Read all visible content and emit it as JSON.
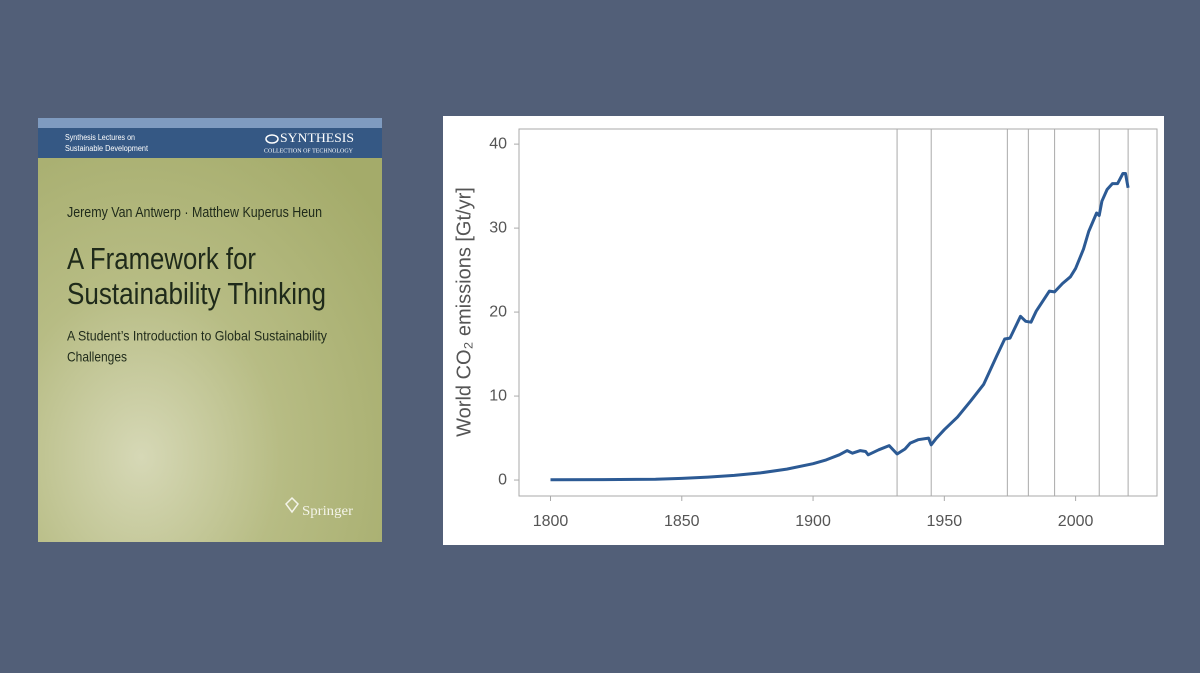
{
  "book_cover": {
    "series_label": [
      "Synthesis Lectures on",
      "Sustainable Development"
    ],
    "publisher_logo": "SYNTHESIS",
    "publisher_tagline": "COLLECTION OF TECHNOLOGY",
    "authors": "Jeremy Van Antwerp · Matthew Kuperus Heun",
    "title": [
      "A Framework for",
      "Sustainability Thinking"
    ],
    "subtitle": [
      "A Student’s Introduction to Global Sustainability",
      "Challenges"
    ],
    "imprint": "Springer"
  },
  "chart_data": {
    "type": "line",
    "y_label": "World CO₂ emissions [Gt/yr]",
    "x": [
      1800,
      1820,
      1840,
      1850,
      1860,
      1870,
      1880,
      1890,
      1900,
      1905,
      1910,
      1913,
      1915,
      1918,
      1920,
      1921,
      1925,
      1929,
      1932,
      1935,
      1937,
      1940,
      1944,
      1945,
      1947,
      1950,
      1955,
      1960,
      1965,
      1970,
      1973,
      1975,
      1979,
      1981,
      1983,
      1985,
      1990,
      1992,
      1995,
      1998,
      2000,
      2003,
      2005,
      2008,
      2009,
      2010,
      2012,
      2014,
      2016,
      2018,
      2019,
      2020
    ],
    "values": [
      0.03,
      0.05,
      0.1,
      0.2,
      0.35,
      0.55,
      0.85,
      1.3,
      1.95,
      2.4,
      3.0,
      3.5,
      3.2,
      3.5,
      3.4,
      3.0,
      3.6,
      4.1,
      3.1,
      3.7,
      4.4,
      4.8,
      5.0,
      4.2,
      5.0,
      6.0,
      7.5,
      9.4,
      11.4,
      14.8,
      16.8,
      16.9,
      19.5,
      18.9,
      18.8,
      20.1,
      22.5,
      22.4,
      23.4,
      24.2,
      25.2,
      27.5,
      29.6,
      31.8,
      31.5,
      33.2,
      34.6,
      35.3,
      35.3,
      36.5,
      36.5,
      34.8
    ],
    "color": "#2c5a94",
    "vlines": [
      1932,
      1945,
      1974,
      1982,
      1992,
      2009,
      2020
    ],
    "xlim": [
      1788,
      2031
    ],
    "ylim": [
      -1.9,
      41.8
    ],
    "xticks": [
      1800,
      1850,
      1900,
      1950,
      2000
    ],
    "yticks": [
      0,
      10,
      20,
      30,
      40
    ]
  }
}
